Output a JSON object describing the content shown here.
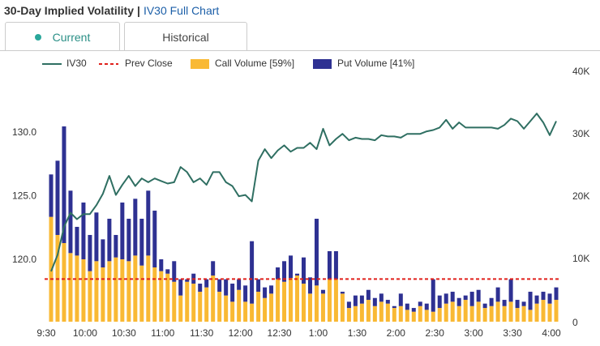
{
  "header": {
    "title": "30-Day Implied Volatility",
    "separator": "|",
    "link": "IV30 Full Chart"
  },
  "tabs": [
    "Current",
    "Historical"
  ],
  "chart_data": {
    "type": "combo",
    "categories": [
      "9:30",
      null,
      null,
      null,
      null,
      null,
      "10:00",
      null,
      null,
      null,
      null,
      null,
      "10:30",
      null,
      null,
      null,
      null,
      null,
      "11:00",
      null,
      null,
      null,
      null,
      null,
      "11:30",
      null,
      null,
      null,
      null,
      null,
      "12:00",
      null,
      null,
      null,
      null,
      null,
      "12:30",
      null,
      null,
      null,
      null,
      null,
      "1:00",
      null,
      null,
      null,
      null,
      null,
      "1:30",
      null,
      null,
      null,
      null,
      null,
      "2:00",
      null,
      null,
      null,
      null,
      null,
      "2:30",
      null,
      null,
      null,
      null,
      null,
      "3:00",
      null,
      null,
      null,
      null,
      null,
      "3:30",
      null,
      null,
      null,
      null,
      null,
      "4:00"
    ],
    "series": [
      {
        "name": "IV30",
        "type": "line",
        "axis": "y",
        "color": "#2f6f62",
        "values": [
          119.1,
          120.4,
          122.6,
          123.7,
          123.2,
          123.6,
          123.6,
          124.3,
          125.2,
          126.6,
          125.1,
          125.9,
          126.6,
          125.8,
          126.4,
          126.1,
          126.4,
          126.2,
          126.0,
          126.1,
          127.3,
          126.9,
          126.1,
          126.4,
          125.9,
          126.9,
          126.9,
          126.1,
          125.8,
          125.0,
          125.1,
          124.6,
          127.8,
          128.7,
          128.0,
          128.6,
          129.0,
          128.5,
          128.8,
          128.8,
          129.2,
          128.7,
          130.3,
          129.0,
          129.5,
          129.9,
          129.4,
          129.6,
          129.5,
          129.5,
          129.4,
          129.8,
          129.7,
          129.7,
          129.6,
          129.9,
          129.9,
          129.9,
          130.1,
          130.2,
          130.4,
          131.0,
          130.3,
          130.8,
          130.4,
          130.4,
          130.4,
          130.4,
          130.4,
          130.3,
          130.6,
          131.1,
          130.9,
          130.3,
          130.9,
          131.5,
          130.8,
          129.8,
          130.9
        ]
      },
      {
        "name": "Call Volume [59%]",
        "type": "bar",
        "axis": "y2",
        "color": "#f9b934",
        "values": [
          16800,
          13900,
          12600,
          11000,
          10600,
          10000,
          8100,
          9700,
          8700,
          9700,
          10300,
          10000,
          9700,
          10600,
          9000,
          10600,
          8700,
          8100,
          7700,
          6400,
          4200,
          6400,
          6100,
          4800,
          5500,
          7400,
          4800,
          4200,
          3200,
          5100,
          3200,
          2900,
          4800,
          3800,
          4500,
          6800,
          6400,
          7000,
          7400,
          6100,
          4500,
          5800,
          4500,
          6800,
          6800,
          4500,
          2200,
          2500,
          2900,
          3500,
          2500,
          3200,
          2900,
          2200,
          2500,
          1900,
          1600,
          2500,
          1900,
          1600,
          2200,
          2900,
          3200,
          2500,
          3500,
          2500,
          3200,
          2200,
          2500,
          3200,
          2500,
          3200,
          2200,
          2500,
          1900,
          2900,
          3500,
          2900,
          3500
        ]
      },
      {
        "name": "Put Volume [41%]",
        "type": "bar",
        "axis": "y2",
        "stack": true,
        "color": "#2e3192",
        "values": [
          6800,
          11900,
          18700,
          10000,
          4600,
          9100,
          5800,
          7800,
          4500,
          6800,
          3600,
          9100,
          6800,
          9100,
          7500,
          10400,
          9100,
          1900,
          700,
          3300,
          2600,
          400,
          1600,
          1300,
          1300,
          2300,
          2000,
          2600,
          2900,
          1700,
          2600,
          10000,
          2000,
          1700,
          1300,
          1900,
          3300,
          3600,
          300,
          4200,
          2600,
          10700,
          600,
          4500,
          4500,
          300,
          1000,
          1700,
          1300,
          1600,
          1300,
          1300,
          600,
          300,
          2000,
          1000,
          600,
          700,
          1000,
          5200,
          2000,
          1600,
          1600,
          1300,
          700,
          2300,
          1900,
          700,
          1300,
          2300,
          1000,
          3600,
          1300,
          700,
          2900,
          1300,
          1300,
          1600,
          2000
        ]
      }
    ],
    "prev_close": {
      "name": "Prev Close",
      "value": 118.5,
      "color": "#e0201b"
    },
    "ylim": [
      115.15,
      134.75
    ],
    "yticks": [
      {
        "value": 120,
        "label": "120.0"
      },
      {
        "value": 125,
        "label": "125.0"
      },
      {
        "value": 130,
        "label": "130.0"
      }
    ],
    "y2lim": [
      0,
      40000
    ],
    "y2ticks": [
      0,
      {
        "value": 10000,
        "label": "10K"
      },
      {
        "value": 20000,
        "label": "20K"
      },
      {
        "value": 30000,
        "label": "30K"
      },
      {
        "value": 40000,
        "label": "40K"
      }
    ],
    "legend": "top"
  }
}
